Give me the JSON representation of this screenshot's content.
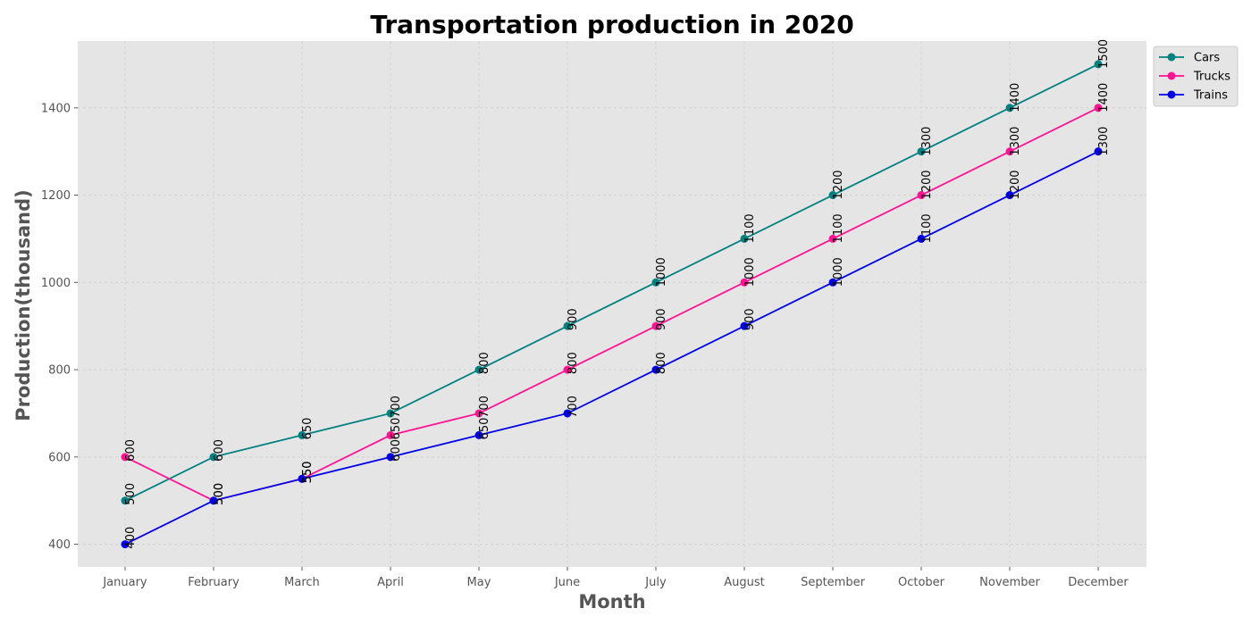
{
  "chart_data": {
    "type": "line",
    "title": "Transportation production in 2020",
    "xlabel": "Month",
    "ylabel": "Production(thousand)",
    "categories": [
      "January",
      "February",
      "March",
      "April",
      "May",
      "June",
      "July",
      "August",
      "September",
      "October",
      "November",
      "December"
    ],
    "series": [
      {
        "name": "Cars",
        "color": "#008080",
        "values": [
          500,
          600,
          650,
          700,
          800,
          900,
          1000,
          1100,
          1200,
          1300,
          1400,
          1500
        ]
      },
      {
        "name": "Trucks",
        "color": "#ff1493",
        "values": [
          600,
          500,
          550,
          650,
          700,
          800,
          900,
          1000,
          1100,
          1200,
          1300,
          1400
        ]
      },
      {
        "name": "Trains",
        "color": "#0000e6",
        "values": [
          400,
          500,
          550,
          600,
          650,
          700,
          800,
          900,
          1000,
          1100,
          1200,
          1300
        ]
      }
    ],
    "ylim": [
      348,
      1553
    ],
    "yticks": [
      400,
      600,
      800,
      1000,
      1200,
      1400
    ],
    "grid": true,
    "legend_position": "top-right",
    "background": "#e5e5e5"
  }
}
